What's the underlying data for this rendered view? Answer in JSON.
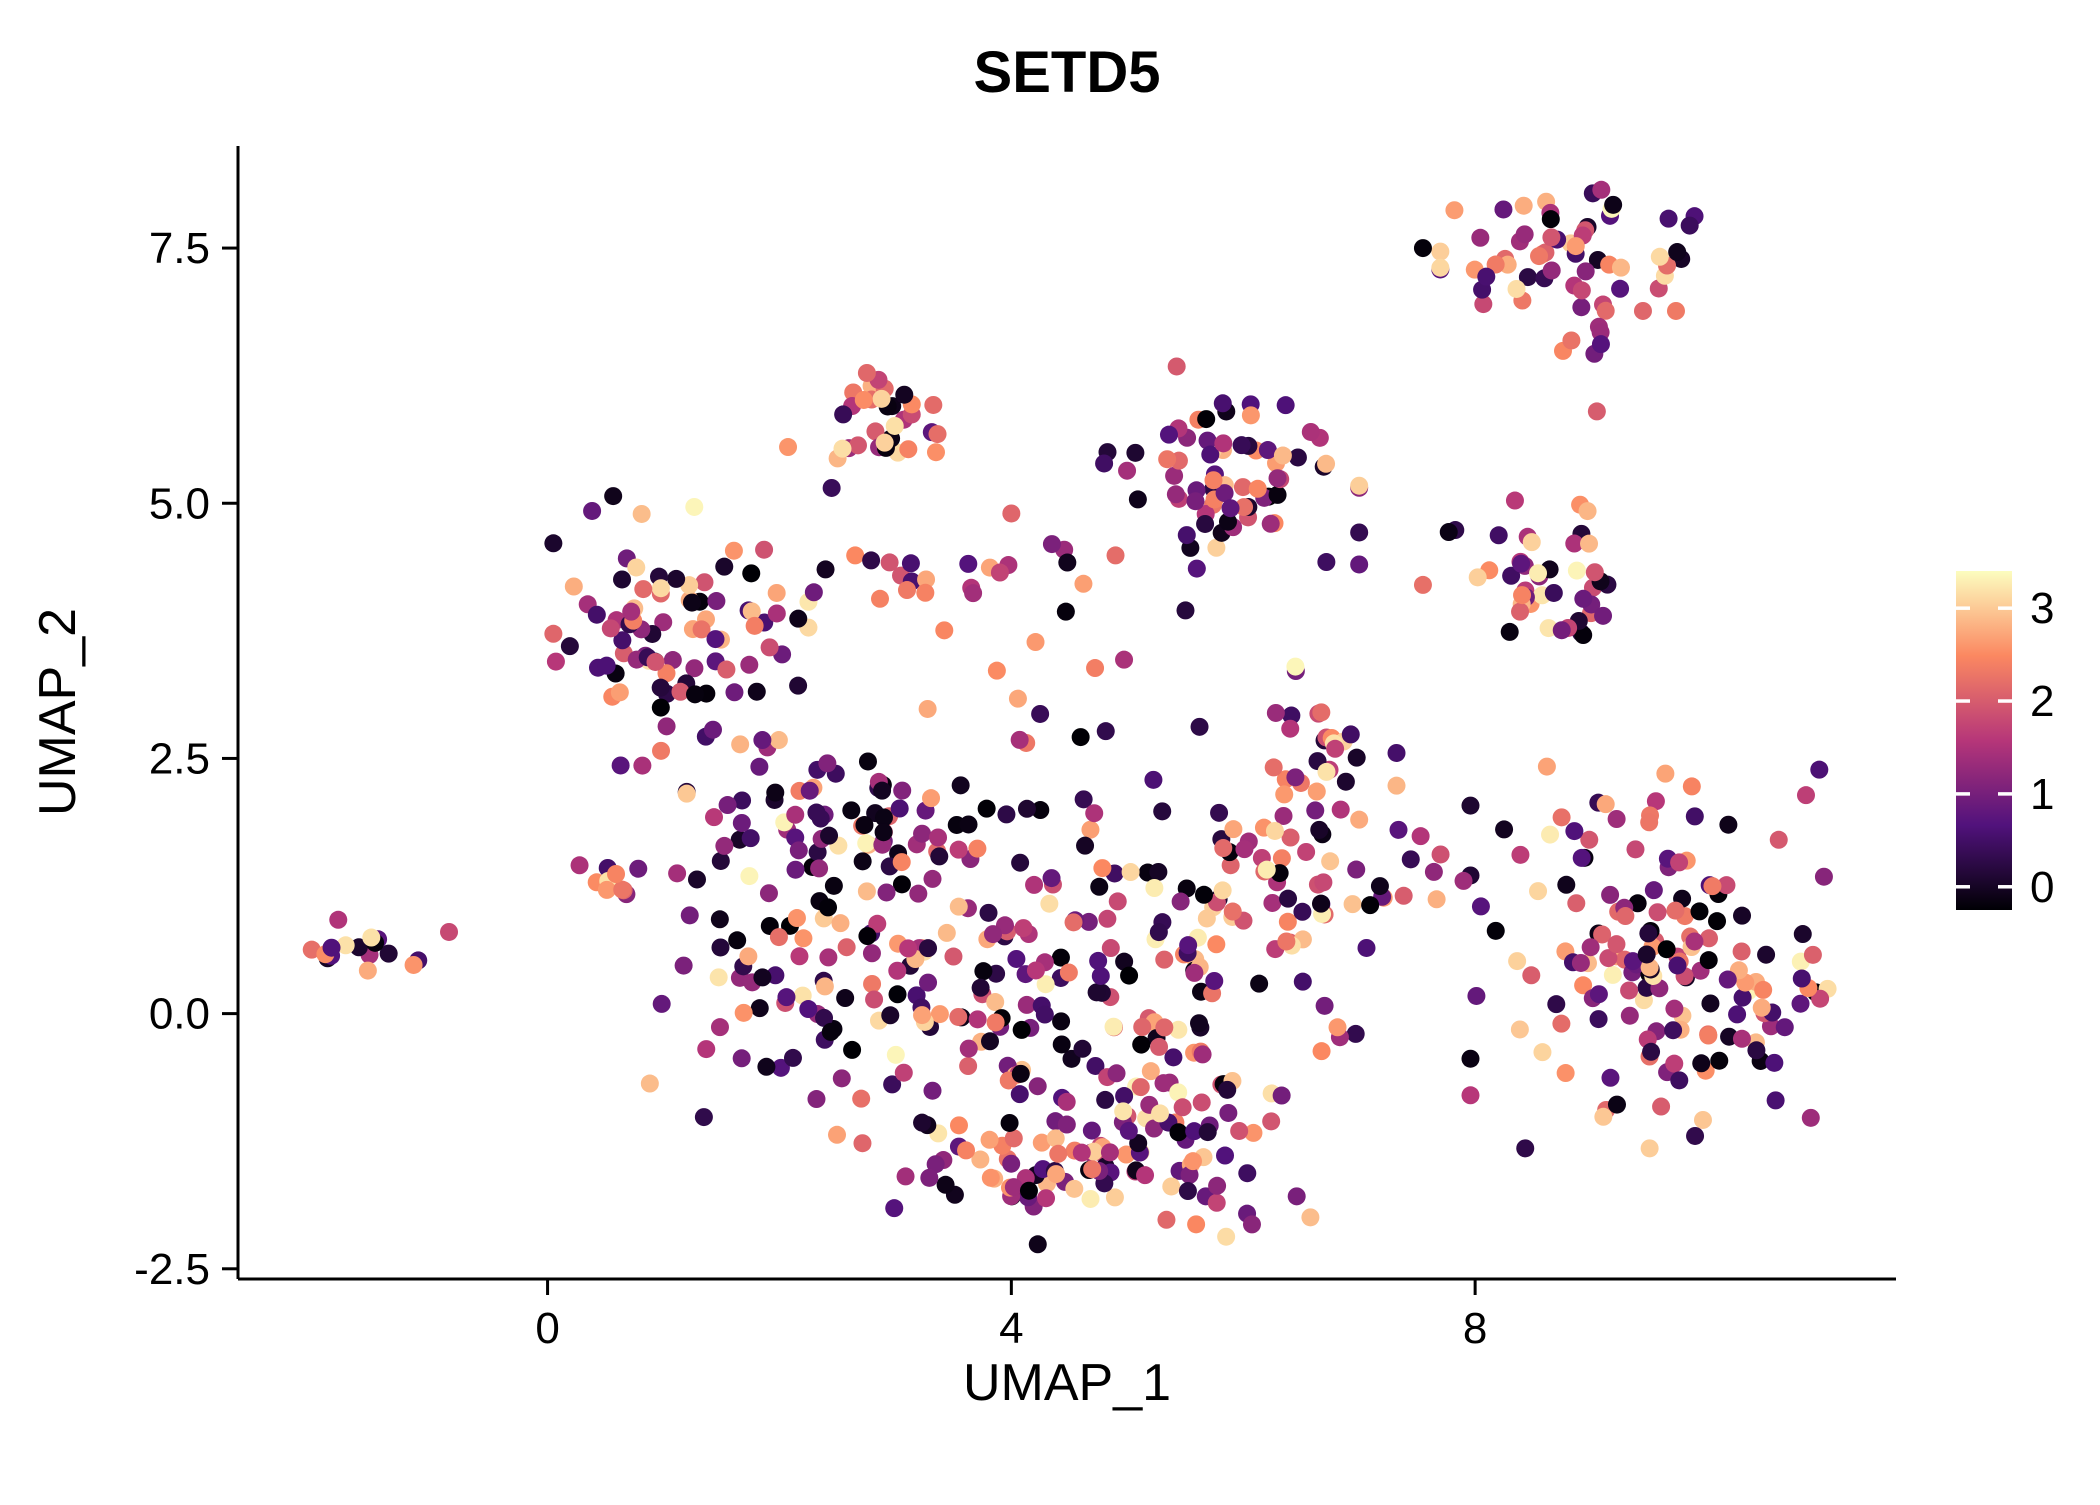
{
  "title": "SETD5",
  "axes": {
    "x_label": "UMAP_1",
    "y_label": "UMAP_2"
  },
  "colors": {
    "background": "#FFFFFF",
    "axis": "#000000",
    "text": "#000000"
  },
  "chart_data": {
    "type": "scatter",
    "title": "SETD5",
    "xlabel": "UMAP_1",
    "ylabel": "UMAP_2",
    "xlim": [
      -2.67,
      11.63
    ],
    "ylim": [
      -2.6,
      8.5
    ],
    "x_ticks": [
      0,
      4,
      8
    ],
    "x_tick_labels": [
      "0",
      "4",
      "8"
    ],
    "y_ticks": [
      -2.5,
      0.0,
      2.5,
      5.0,
      7.5
    ],
    "y_tick_labels": [
      "-2.5",
      "0.0",
      "2.5",
      "5.0",
      "7.5"
    ],
    "grid": false,
    "point_radius_px": 9,
    "legend": {
      "position": "right",
      "ticks": [
        0,
        1,
        2,
        3
      ],
      "tick_labels": [
        "0",
        "1",
        "2",
        "3"
      ],
      "limits": [
        0,
        3.4
      ],
      "colormap": "magma",
      "stops": [
        {
          "t": 0.0,
          "color": "#000004"
        },
        {
          "t": 0.25,
          "color": "#51127C"
        },
        {
          "t": 0.5,
          "color": "#B63679"
        },
        {
          "t": 0.75,
          "color": "#FB8861"
        },
        {
          "t": 1.0,
          "color": "#FCFDBF"
        }
      ]
    },
    "clusters": [
      {
        "name": "left-isolated",
        "n": 16,
        "cx": -1.55,
        "cy": 0.65,
        "sx": 0.22,
        "sy": 0.13,
        "vexp": 0.75
      },
      {
        "name": "top-right-main",
        "n": 58,
        "cx": 8.8,
        "cy": 7.5,
        "sx": 0.5,
        "sy": 0.28,
        "vexp": 0.9
      },
      {
        "name": "top-right-sub",
        "n": 9,
        "cx": 9.05,
        "cy": 6.75,
        "sx": 0.18,
        "sy": 0.22,
        "vexp": 0.9
      },
      {
        "name": "upper-left-small",
        "n": 32,
        "cx": 2.8,
        "cy": 5.85,
        "sx": 0.33,
        "sy": 0.27,
        "vexp": 1.05
      },
      {
        "name": "upper-mid",
        "n": 72,
        "cx": 5.9,
        "cy": 5.35,
        "sx": 0.5,
        "sy": 0.45,
        "vexp": 1.0
      },
      {
        "name": "right-upper",
        "n": 44,
        "cx": 8.6,
        "cy": 4.3,
        "sx": 0.38,
        "sy": 0.38,
        "vexp": 1.0
      },
      {
        "name": "left-main",
        "n": 88,
        "cx": 1.15,
        "cy": 3.75,
        "sx": 0.5,
        "sy": 0.6,
        "vexp": 1.15
      },
      {
        "name": "mid-band",
        "n": 22,
        "cx": 3.7,
        "cy": 4.35,
        "sx": 0.95,
        "sy": 0.13,
        "vexp": 1.0
      },
      {
        "name": "mid-scatter",
        "n": 18,
        "cx": 4.6,
        "cy": 3.15,
        "sx": 0.95,
        "sy": 0.5,
        "vexp": 1.1
      },
      {
        "name": "center-left",
        "n": 70,
        "cx": 2.0,
        "cy": 0.6,
        "sx": 0.6,
        "sy": 0.85,
        "vexp": 1.15
      },
      {
        "name": "center-left-upper",
        "n": 55,
        "cx": 2.3,
        "cy": 1.8,
        "sx": 0.5,
        "sy": 0.4,
        "vexp": 1.15
      },
      {
        "name": "center",
        "n": 95,
        "cx": 3.6,
        "cy": 0.2,
        "sx": 0.75,
        "sy": 0.95,
        "vexp": 1.15
      },
      {
        "name": "center-right",
        "n": 110,
        "cx": 5.1,
        "cy": 0.3,
        "sx": 0.85,
        "sy": 0.95,
        "vexp": 1.1
      },
      {
        "name": "bottom-mid",
        "n": 58,
        "cx": 5.4,
        "cy": -1.35,
        "sx": 0.65,
        "sy": 0.38,
        "vexp": 1.1
      },
      {
        "name": "bottom-left",
        "n": 42,
        "cx": 4.2,
        "cy": -1.6,
        "sx": 0.55,
        "sy": 0.3,
        "vexp": 1.15
      },
      {
        "name": "ridge-right",
        "n": 46,
        "cx": 6.3,
        "cy": 1.6,
        "sx": 0.38,
        "sy": 0.6,
        "vexp": 0.95
      },
      {
        "name": "ridge-top",
        "n": 20,
        "cx": 6.75,
        "cy": 2.55,
        "sx": 0.26,
        "sy": 0.3,
        "vexp": 0.9
      },
      {
        "name": "bridge",
        "n": 13,
        "cx": 7.3,
        "cy": 1.35,
        "sx": 0.35,
        "sy": 0.4,
        "vexp": 1.0
      },
      {
        "name": "right-main",
        "n": 150,
        "cx": 9.5,
        "cy": 0.55,
        "sx": 0.7,
        "sy": 0.85,
        "vexp": 1.05
      },
      {
        "name": "right-fringe",
        "n": 14,
        "cx": 10.55,
        "cy": 0.25,
        "sx": 0.28,
        "sy": 0.5,
        "vexp": 1.0
      },
      {
        "name": "left-small-pair",
        "n": 8,
        "cx": 0.55,
        "cy": 1.25,
        "sx": 0.22,
        "sy": 0.16,
        "vexp": 0.85
      }
    ],
    "extra_points": [
      [
        7.55,
        7.5,
        0.05
      ],
      [
        9.05,
        5.9,
        2.1
      ],
      [
        7.0,
        4.4,
        1.0
      ],
      [
        7.55,
        4.2,
        2.3
      ],
      [
        6.45,
        3.4,
        3.35
      ],
      [
        7.9,
        1.3,
        1.5
      ],
      [
        8.05,
        1.05,
        0.9
      ],
      [
        -0.85,
        0.8,
        1.9
      ],
      [
        2.45,
        5.15,
        0.6
      ],
      [
        3.35,
        5.5,
        2.6
      ],
      [
        4.0,
        4.9,
        2.2
      ],
      [
        4.35,
        4.6,
        1.2
      ],
      [
        3.1,
        4.15,
        2.4
      ],
      [
        7.0,
        1.9,
        2.8
      ]
    ]
  }
}
